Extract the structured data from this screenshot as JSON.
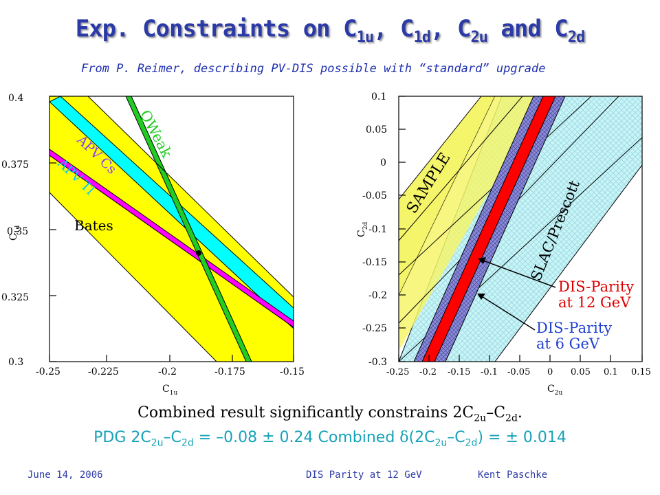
{
  "title": {
    "prefix": "Exp. Constraints on C",
    "s1": "1u",
    "sep1": ", C",
    "s2": "1d",
    "sep2": ", C",
    "s3": "2u",
    "sep3": " and C",
    "s4": "2d"
  },
  "subtitle": "From P. Reimer, describing PV-DIS possible with “standard” upgrade",
  "left_plot": {
    "y_ticks": [
      "0.4",
      "0.375",
      "0.35",
      "0.325",
      "0.3"
    ],
    "x_ticks": [
      "-0.25",
      "-0.225",
      "-0.2",
      "-0.175",
      "-0.15"
    ],
    "ylabel": "C",
    "ylabel_sub": "1d",
    "xlabel": "C",
    "xlabel_sub": "1u",
    "labels": {
      "qweak": "QWeak",
      "apv_cs": "APV Cs",
      "apv_tl": "APV Tl",
      "bates": "Bates"
    },
    "colors": {
      "bates": "#ffff00",
      "apv_cs": "#00ffff",
      "apv_tl": "#ff00ff",
      "qweak": "#22cc22",
      "qweak_label": "#22cc22",
      "apv_label": "#7f3fff",
      "apv_tl_label": "#00c8ff"
    }
  },
  "right_plot": {
    "y_ticks": [
      "0.1",
      "0.05",
      "0",
      "-0.05",
      "-0.1",
      "-0.15",
      "-0.2",
      "-0.25",
      "-0.3"
    ],
    "x_ticks": [
      "-0.25",
      "-0.2",
      "-0.15",
      "-0.1",
      "-0.05",
      "0",
      "0.05",
      "0.1",
      "0.15"
    ],
    "ylabel": "C",
    "ylabel_sub": "2d",
    "xlabel": "C",
    "xlabel_sub": "2u",
    "labels": {
      "sample": "SAMPLE",
      "slac": "SLAC/Prescott",
      "dis12_line1": "DIS-Parity",
      "dis12_line2": "at 12 GeV",
      "dis6_line1": "DIS-Parity",
      "dis6_line2": "at 6 GeV"
    },
    "colors": {
      "sample": "#f5f56b",
      "slac": "#c8f5f5",
      "dis12": "#ff0000",
      "dis6": "#9999dd",
      "dis12_label": "#dd0000",
      "dis6_label": "#2040d0"
    }
  },
  "caption": {
    "text1": "Combined result significantly constrains 2C",
    "s1": "2u",
    "mid": "–C",
    "s2": "2d",
    "end": "."
  },
  "result": {
    "t1": "PDG 2C",
    "s1": "2u",
    "t2": "–C",
    "s2": "2d",
    "t3": " = –0.08 ± 0.24  Combined ",
    "delta": "δ",
    "t4": "(2C",
    "s3": "2u",
    "t5": "–C",
    "s4": "2d",
    "t6": ") = ± 0.014"
  },
  "footer": {
    "date": "June 14, 2006",
    "event": "DIS Parity at 12 GeV",
    "author": "Kent Paschke"
  }
}
